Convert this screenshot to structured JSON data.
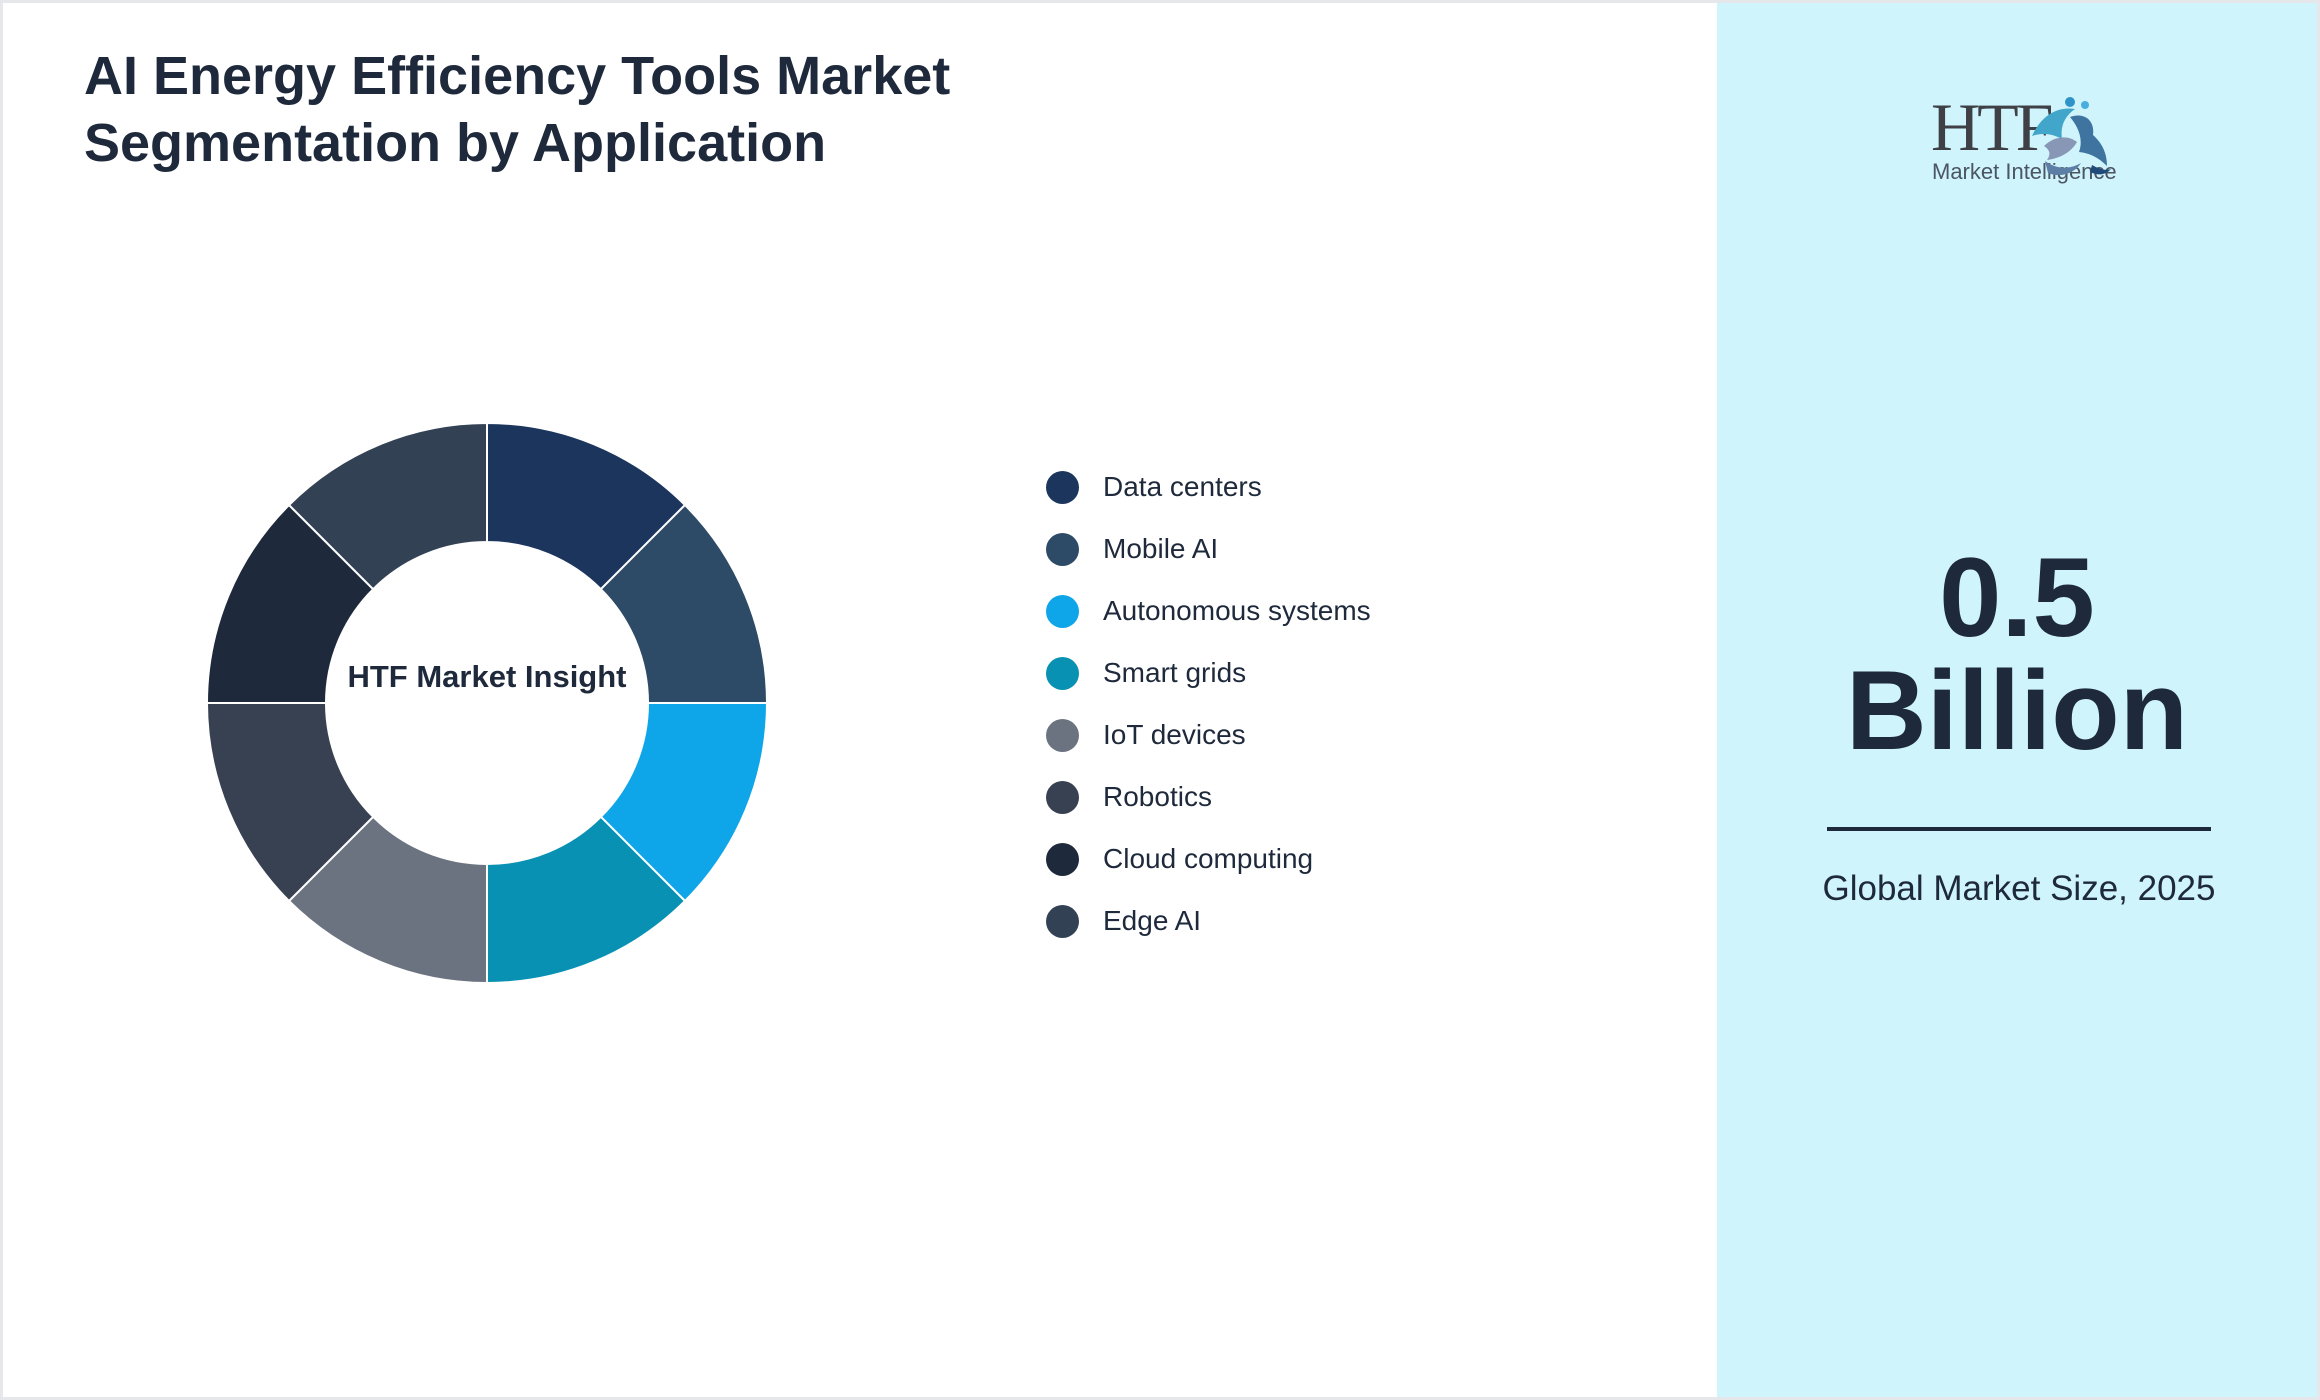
{
  "page": {
    "title": "AI Energy Efficiency Tools Market Segmentation by Application"
  },
  "chart_data": {
    "type": "pie",
    "variant": "donut",
    "categories": [
      "Data centers",
      "Mobile AI",
      "Autonomous systems",
      "Smart grids",
      "IoT devices",
      "Robotics",
      "Cloud computing",
      "Edge AI"
    ],
    "values": [
      12.5,
      12.5,
      12.5,
      12.5,
      12.5,
      12.5,
      12.5,
      12.5
    ],
    "colors": [
      "#1b355c",
      "#2d4a66",
      "#0ea5e9",
      "#0891b2",
      "#6b7280",
      "#374151",
      "#1e293b",
      "#334155"
    ],
    "center_label": "HTF Market Insight",
    "legend_placement": "right"
  },
  "branding": {
    "logo_text": "HTF",
    "logo_subtext": "Market Intelligence"
  },
  "metric": {
    "value": "0.5",
    "unit": "Billion",
    "caption": "Global Market Size, 2025"
  },
  "colors": {
    "text": "#1e293b",
    "side_panel": "#cff4fc",
    "frame": "#e5e7eb"
  }
}
